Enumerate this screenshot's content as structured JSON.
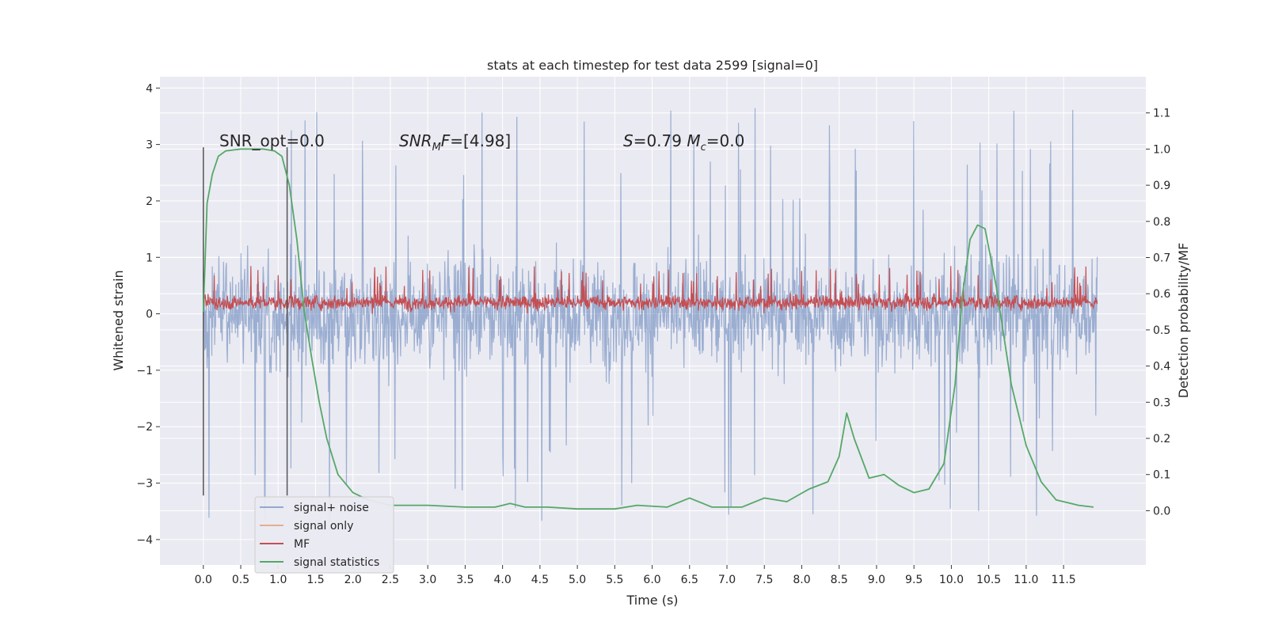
{
  "chart_data": {
    "type": "line",
    "title": "stats at each timestep for test data 2599 [signal=0]",
    "xlabel": "Time (s)",
    "ylabel": "Whitened strain",
    "y2label": "Detection probability/MF",
    "xlim": [
      -0.58,
      12.6
    ],
    "ylim": [
      -4.45,
      4.2
    ],
    "y2lim": [
      -0.15,
      1.2
    ],
    "x_ticks": [
      "0.0",
      "0.5",
      "1.0",
      "1.5",
      "2.0",
      "2.5",
      "3.0",
      "3.5",
      "4.0",
      "4.5",
      "5.0",
      "5.5",
      "6.0",
      "6.5",
      "7.0",
      "7.5",
      "8.0",
      "8.5",
      "9.0",
      "9.5",
      "10.0",
      "10.5",
      "11.0",
      "11.5"
    ],
    "y_ticks": [
      "4",
      "3",
      "2",
      "1",
      "0",
      "−1",
      "−2",
      "−3",
      "−4"
    ],
    "y2_ticks": [
      "1.1",
      "1.0",
      "0.9",
      "0.8",
      "0.7",
      "0.6",
      "0.5",
      "0.4",
      "0.3",
      "0.2",
      "0.1",
      "0.0"
    ],
    "grid": true,
    "legend_position": "lower-left",
    "annotations": [
      "SNR_opt=0.0",
      "SNR_MF=[4.98]",
      "S=0.79   M_c=0.0"
    ],
    "vlines_x": [
      0.0,
      1.12
    ],
    "colors": {
      "signal_noise": "#4c72b0",
      "signal_only": "#dd8452",
      "mf": "#c44e52",
      "stat": "#55a868",
      "plot_bg": "#eaeaf2",
      "grid": "#ffffff",
      "vline": "#555555"
    },
    "series": [
      {
        "name": "signal+ noise",
        "kind": "noise",
        "x_range": [
          0.0,
          11.95
        ],
        "amplitude_core": 1.2,
        "envelope": [
          -3.9,
          3.8
        ]
      },
      {
        "name": "signal only",
        "kind": "flat",
        "values": []
      },
      {
        "name": "MF",
        "kind": "noise",
        "x_range": [
          0.0,
          11.95
        ],
        "center": 0.2,
        "amplitude_core": 0.2,
        "envelope": [
          0.0,
          0.85
        ]
      },
      {
        "name": "signal statistics",
        "axis": "right",
        "x": [
          0.0,
          0.05,
          0.12,
          0.2,
          0.3,
          0.5,
          0.8,
          0.95,
          1.05,
          1.15,
          1.25,
          1.35,
          1.45,
          1.55,
          1.65,
          1.8,
          2.0,
          2.2,
          2.5,
          3.0,
          3.5,
          3.9,
          4.1,
          4.3,
          4.6,
          5.0,
          5.5,
          5.8,
          6.2,
          6.5,
          6.8,
          7.2,
          7.5,
          7.8,
          8.1,
          8.35,
          8.5,
          8.6,
          8.7,
          8.9,
          9.1,
          9.3,
          9.5,
          9.7,
          9.9,
          10.05,
          10.15,
          10.25,
          10.35,
          10.45,
          10.6,
          10.8,
          11.0,
          11.2,
          11.4,
          11.7,
          11.9
        ],
        "values": [
          0.55,
          0.85,
          0.93,
          0.98,
          0.995,
          1.0,
          1.0,
          0.995,
          0.98,
          0.9,
          0.75,
          0.55,
          0.42,
          0.3,
          0.2,
          0.1,
          0.05,
          0.03,
          0.015,
          0.015,
          0.01,
          0.01,
          0.02,
          0.01,
          0.01,
          0.005,
          0.005,
          0.015,
          0.01,
          0.035,
          0.01,
          0.01,
          0.035,
          0.025,
          0.06,
          0.08,
          0.15,
          0.27,
          0.2,
          0.09,
          0.1,
          0.07,
          0.05,
          0.06,
          0.13,
          0.35,
          0.6,
          0.75,
          0.79,
          0.78,
          0.62,
          0.35,
          0.18,
          0.08,
          0.03,
          0.015,
          0.01
        ]
      }
    ],
    "legend": [
      "signal+ noise",
      "signal only",
      "MF",
      "signal statistics"
    ]
  }
}
